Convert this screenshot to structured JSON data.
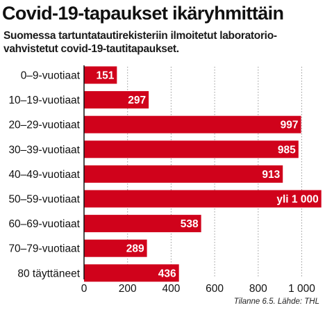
{
  "title": "Covid-19-tapaukset ikäryhmittäin",
  "subtitle_lines": [
    "Suomessa tartuntatautirekisteriin ilmoitetut laboratorio-",
    "vahvistetut covid-19-tautitapaukset."
  ],
  "source": "Tilanne 6.5. Lähde: THL",
  "colors": {
    "bar": "#d0021b",
    "label": "#ffffff",
    "text": "#111111",
    "grid": "#999999"
  },
  "chart_data": {
    "type": "bar",
    "orientation": "horizontal",
    "categories": [
      "0–9-vuotiaat",
      "10–19-vuotiaat",
      "20–29-vuotiaat",
      "30–39-vuotiaat",
      "40–49-vuotiaat",
      "50–59-vuotiaat",
      "60–69-vuotiaat",
      "70–79-vuotiaat",
      "80 täyttäneet"
    ],
    "values": [
      151,
      297,
      997,
      985,
      913,
      1090,
      538,
      289,
      436
    ],
    "data_labels": [
      "151",
      "297",
      "997",
      "985",
      "913",
      "yli 1 000",
      "538",
      "289",
      "436"
    ],
    "xlim": [
      0,
      1050
    ],
    "xticks": [
      0,
      200,
      400,
      600,
      800,
      1000
    ],
    "xtick_labels": [
      "0",
      "200",
      "400",
      "600",
      "800",
      "1 000"
    ],
    "grid": true,
    "legend": "none"
  }
}
